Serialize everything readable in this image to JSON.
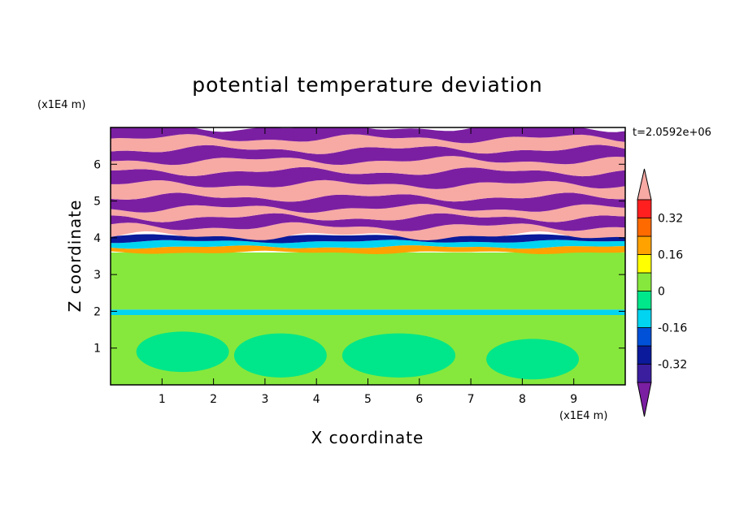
{
  "chart_data": {
    "type": "heatmap",
    "title": "potential temperature deviation",
    "xlabel": "X coordinate",
    "ylabel": "Z coordinate",
    "x_unit": "(x1E4 m)",
    "y_unit": "(x1E4 m)",
    "time_label": "t=2.0592e+06",
    "xlim": [
      0,
      10
    ],
    "ylim": [
      0,
      7
    ],
    "xticks": [
      1,
      2,
      3,
      4,
      5,
      6,
      7,
      8,
      9
    ],
    "yticks": [
      1,
      2,
      3,
      4,
      5,
      6
    ],
    "colorbar": {
      "levels": [
        -0.48,
        -0.4,
        -0.32,
        -0.24,
        -0.16,
        -0.08,
        0,
        0.08,
        0.16,
        0.24,
        0.32,
        0.4,
        0.48
      ],
      "colors": [
        "#7b1fa2",
        "#3b1e9e",
        "#0a1a9b",
        "#0050d8",
        "#00d4f0",
        "#00e68a",
        "#86e83c",
        "#ffff00",
        "#ffa200",
        "#ff6a00",
        "#ff1f1f",
        "#f7a9a4"
      ],
      "tick_labels": [
        "0.32",
        "0.16",
        "0",
        "-0.16",
        "-0.32"
      ],
      "tick_values": [
        0.32,
        0.16,
        0,
        -0.16,
        -0.32
      ],
      "extend": "both"
    },
    "bands": [
      {
        "z": [
          0,
          1.9
        ],
        "value": 0.04
      },
      {
        "z": [
          1.9,
          2.05
        ],
        "value": -0.12
      },
      {
        "z": [
          2.05,
          3.6
        ],
        "value": 0.02
      },
      {
        "z": [
          3.6,
          3.75
        ],
        "value": 0.22
      },
      {
        "z": [
          3.75,
          3.9
        ],
        "value": -0.12
      },
      {
        "z": [
          3.9,
          4.05
        ],
        "value": -0.28
      },
      {
        "z": [
          4.05,
          4.3
        ],
        "value": 0.52
      },
      {
        "z": [
          4.3,
          4.55
        ],
        "value": -0.52
      },
      {
        "z": [
          4.55,
          4.8
        ],
        "value": 0.52
      },
      {
        "z": [
          4.8,
          5.1
        ],
        "value": -0.52
      },
      {
        "z": [
          5.1,
          5.45
        ],
        "value": 0.52
      },
      {
        "z": [
          5.45,
          5.8
        ],
        "value": -0.52
      },
      {
        "z": [
          5.8,
          6.1
        ],
        "value": 0.52
      },
      {
        "z": [
          6.1,
          6.4
        ],
        "value": -0.52
      },
      {
        "z": [
          6.4,
          6.7
        ],
        "value": 0.52
      },
      {
        "z": [
          6.7,
          7.0
        ],
        "value": -0.52
      }
    ]
  }
}
